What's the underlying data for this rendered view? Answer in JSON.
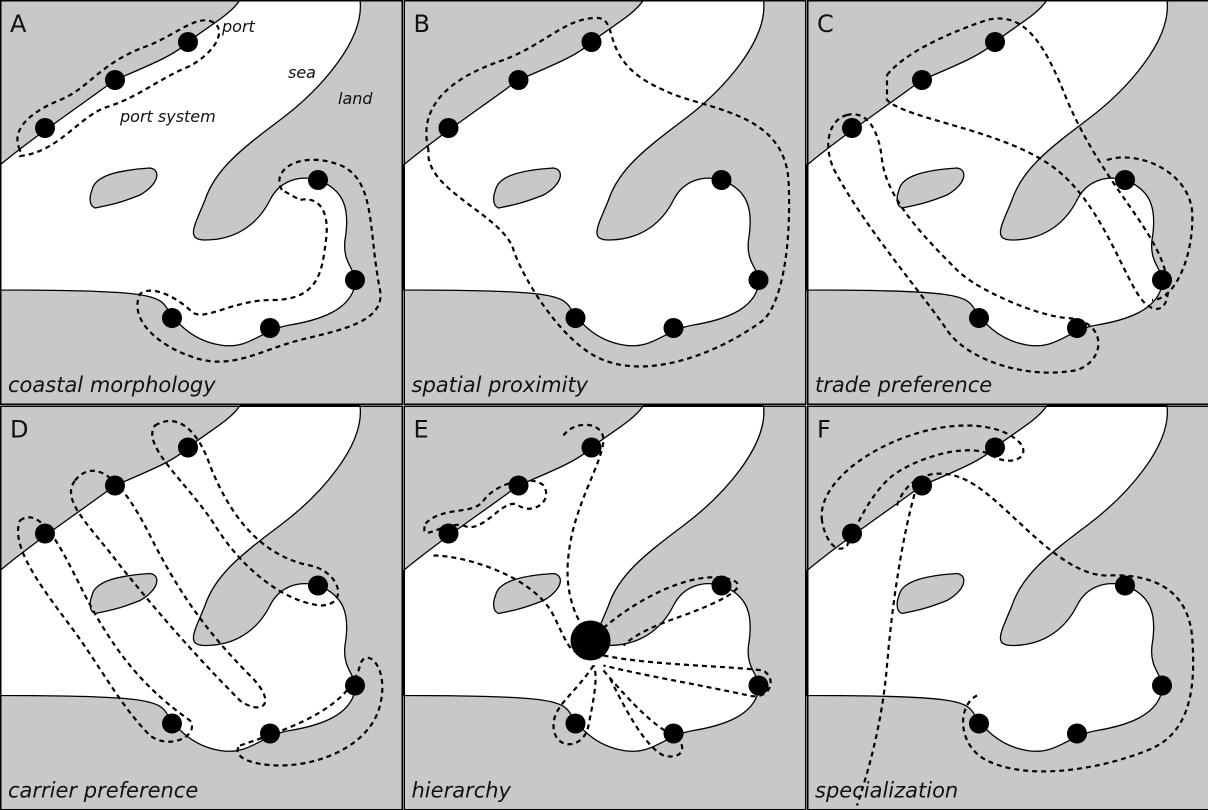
{
  "panels": [
    {
      "letter": "A",
      "caption": "coastal morphology"
    },
    {
      "letter": "B",
      "caption": "spatial proximity"
    },
    {
      "letter": "C",
      "caption": "trade preference"
    },
    {
      "letter": "D",
      "caption": "carrier preference"
    },
    {
      "letter": "E",
      "caption": "hierarchy"
    },
    {
      "letter": "F",
      "caption": "specialization"
    }
  ],
  "annotations": {
    "port": "port",
    "sea": "sea",
    "land": "land",
    "port_system": "port system"
  }
}
